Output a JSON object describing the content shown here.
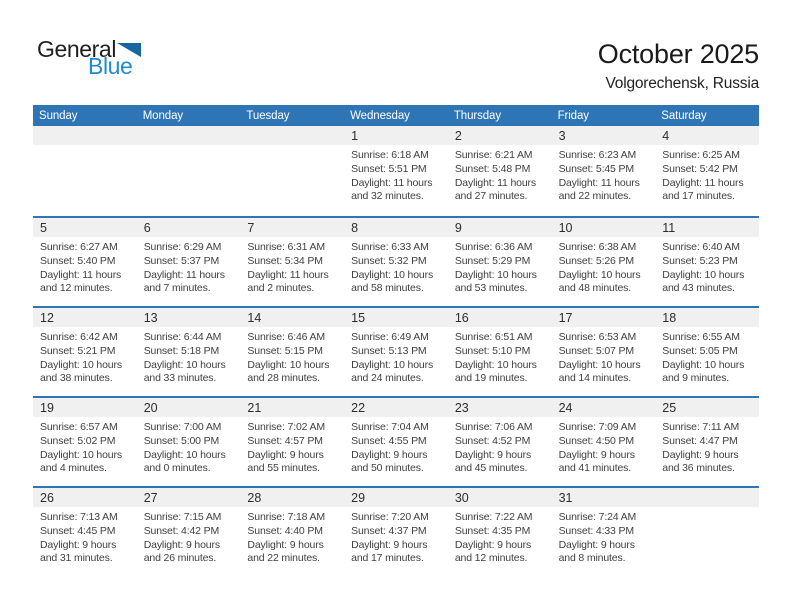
{
  "logo": {
    "general": "General",
    "blue": "Blue"
  },
  "header": {
    "title": "October 2025",
    "subtitle": "Volgorechensk, Russia"
  },
  "weekdays": [
    "Sunday",
    "Monday",
    "Tuesday",
    "Wednesday",
    "Thursday",
    "Friday",
    "Saturday"
  ],
  "colors": {
    "header_blue": "#2e75b6",
    "divider_blue": "#2e75b6",
    "band_gray": "#f0f0f0",
    "logo_text_blue": "#1e8bd1",
    "logo_triangle_blue": "#1467a0",
    "weekday_text": "#ffffff",
    "body_text": "#3f3f3f"
  },
  "weeks": [
    [
      {},
      {},
      {},
      {
        "date": "1",
        "sunrise": "Sunrise: 6:18 AM",
        "sunset": "Sunset: 5:51 PM",
        "daylight": "Daylight: 11 hours",
        "daylight2": "and 32 minutes."
      },
      {
        "date": "2",
        "sunrise": "Sunrise: 6:21 AM",
        "sunset": "Sunset: 5:48 PM",
        "daylight": "Daylight: 11 hours",
        "daylight2": "and 27 minutes."
      },
      {
        "date": "3",
        "sunrise": "Sunrise: 6:23 AM",
        "sunset": "Sunset: 5:45 PM",
        "daylight": "Daylight: 11 hours",
        "daylight2": "and 22 minutes."
      },
      {
        "date": "4",
        "sunrise": "Sunrise: 6:25 AM",
        "sunset": "Sunset: 5:42 PM",
        "daylight": "Daylight: 11 hours",
        "daylight2": "and 17 minutes."
      }
    ],
    [
      {
        "date": "5",
        "sunrise": "Sunrise: 6:27 AM",
        "sunset": "Sunset: 5:40 PM",
        "daylight": "Daylight: 11 hours",
        "daylight2": "and 12 minutes."
      },
      {
        "date": "6",
        "sunrise": "Sunrise: 6:29 AM",
        "sunset": "Sunset: 5:37 PM",
        "daylight": "Daylight: 11 hours",
        "daylight2": "and 7 minutes."
      },
      {
        "date": "7",
        "sunrise": "Sunrise: 6:31 AM",
        "sunset": "Sunset: 5:34 PM",
        "daylight": "Daylight: 11 hours",
        "daylight2": "and 2 minutes."
      },
      {
        "date": "8",
        "sunrise": "Sunrise: 6:33 AM",
        "sunset": "Sunset: 5:32 PM",
        "daylight": "Daylight: 10 hours",
        "daylight2": "and 58 minutes."
      },
      {
        "date": "9",
        "sunrise": "Sunrise: 6:36 AM",
        "sunset": "Sunset: 5:29 PM",
        "daylight": "Daylight: 10 hours",
        "daylight2": "and 53 minutes."
      },
      {
        "date": "10",
        "sunrise": "Sunrise: 6:38 AM",
        "sunset": "Sunset: 5:26 PM",
        "daylight": "Daylight: 10 hours",
        "daylight2": "and 48 minutes."
      },
      {
        "date": "11",
        "sunrise": "Sunrise: 6:40 AM",
        "sunset": "Sunset: 5:23 PM",
        "daylight": "Daylight: 10 hours",
        "daylight2": "and 43 minutes."
      }
    ],
    [
      {
        "date": "12",
        "sunrise": "Sunrise: 6:42 AM",
        "sunset": "Sunset: 5:21 PM",
        "daylight": "Daylight: 10 hours",
        "daylight2": "and 38 minutes."
      },
      {
        "date": "13",
        "sunrise": "Sunrise: 6:44 AM",
        "sunset": "Sunset: 5:18 PM",
        "daylight": "Daylight: 10 hours",
        "daylight2": "and 33 minutes."
      },
      {
        "date": "14",
        "sunrise": "Sunrise: 6:46 AM",
        "sunset": "Sunset: 5:15 PM",
        "daylight": "Daylight: 10 hours",
        "daylight2": "and 28 minutes."
      },
      {
        "date": "15",
        "sunrise": "Sunrise: 6:49 AM",
        "sunset": "Sunset: 5:13 PM",
        "daylight": "Daylight: 10 hours",
        "daylight2": "and 24 minutes."
      },
      {
        "date": "16",
        "sunrise": "Sunrise: 6:51 AM",
        "sunset": "Sunset: 5:10 PM",
        "daylight": "Daylight: 10 hours",
        "daylight2": "and 19 minutes."
      },
      {
        "date": "17",
        "sunrise": "Sunrise: 6:53 AM",
        "sunset": "Sunset: 5:07 PM",
        "daylight": "Daylight: 10 hours",
        "daylight2": "and 14 minutes."
      },
      {
        "date": "18",
        "sunrise": "Sunrise: 6:55 AM",
        "sunset": "Sunset: 5:05 PM",
        "daylight": "Daylight: 10 hours",
        "daylight2": "and 9 minutes."
      }
    ],
    [
      {
        "date": "19",
        "sunrise": "Sunrise: 6:57 AM",
        "sunset": "Sunset: 5:02 PM",
        "daylight": "Daylight: 10 hours",
        "daylight2": "and 4 minutes."
      },
      {
        "date": "20",
        "sunrise": "Sunrise: 7:00 AM",
        "sunset": "Sunset: 5:00 PM",
        "daylight": "Daylight: 10 hours",
        "daylight2": "and 0 minutes."
      },
      {
        "date": "21",
        "sunrise": "Sunrise: 7:02 AM",
        "sunset": "Sunset: 4:57 PM",
        "daylight": "Daylight: 9 hours",
        "daylight2": "and 55 minutes."
      },
      {
        "date": "22",
        "sunrise": "Sunrise: 7:04 AM",
        "sunset": "Sunset: 4:55 PM",
        "daylight": "Daylight: 9 hours",
        "daylight2": "and 50 minutes."
      },
      {
        "date": "23",
        "sunrise": "Sunrise: 7:06 AM",
        "sunset": "Sunset: 4:52 PM",
        "daylight": "Daylight: 9 hours",
        "daylight2": "and 45 minutes."
      },
      {
        "date": "24",
        "sunrise": "Sunrise: 7:09 AM",
        "sunset": "Sunset: 4:50 PM",
        "daylight": "Daylight: 9 hours",
        "daylight2": "and 41 minutes."
      },
      {
        "date": "25",
        "sunrise": "Sunrise: 7:11 AM",
        "sunset": "Sunset: 4:47 PM",
        "daylight": "Daylight: 9 hours",
        "daylight2": "and 36 minutes."
      }
    ],
    [
      {
        "date": "26",
        "sunrise": "Sunrise: 7:13 AM",
        "sunset": "Sunset: 4:45 PM",
        "daylight": "Daylight: 9 hours",
        "daylight2": "and 31 minutes."
      },
      {
        "date": "27",
        "sunrise": "Sunrise: 7:15 AM",
        "sunset": "Sunset: 4:42 PM",
        "daylight": "Daylight: 9 hours",
        "daylight2": "and 26 minutes."
      },
      {
        "date": "28",
        "sunrise": "Sunrise: 7:18 AM",
        "sunset": "Sunset: 4:40 PM",
        "daylight": "Daylight: 9 hours",
        "daylight2": "and 22 minutes."
      },
      {
        "date": "29",
        "sunrise": "Sunrise: 7:20 AM",
        "sunset": "Sunset: 4:37 PM",
        "daylight": "Daylight: 9 hours",
        "daylight2": "and 17 minutes."
      },
      {
        "date": "30",
        "sunrise": "Sunrise: 7:22 AM",
        "sunset": "Sunset: 4:35 PM",
        "daylight": "Daylight: 9 hours",
        "daylight2": "and 12 minutes."
      },
      {
        "date": "31",
        "sunrise": "Sunrise: 7:24 AM",
        "sunset": "Sunset: 4:33 PM",
        "daylight": "Daylight: 9 hours",
        "daylight2": "and 8 minutes."
      },
      {}
    ]
  ]
}
